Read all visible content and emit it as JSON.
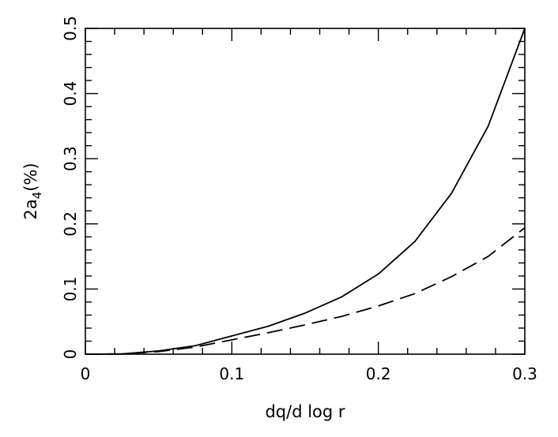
{
  "chart_data": {
    "type": "line",
    "title": "",
    "xlabel": "dq/d log r",
    "ylabel_main": "2a",
    "ylabel_sub": "4",
    "ylabel_tail": "(%)",
    "xlim": [
      0,
      0.3
    ],
    "ylim": [
      0,
      0.5
    ],
    "xticks": [
      0,
      0.1,
      0.2,
      0.3
    ],
    "yticks": [
      0,
      0.1,
      0.2,
      0.3,
      0.4,
      0.5
    ],
    "xtick_labels": [
      "0",
      "0.1",
      "0.2",
      "0.3"
    ],
    "ytick_labels": [
      "0",
      "0.1",
      "0.2",
      "0.3",
      "0.4",
      "0.5"
    ],
    "grid": false,
    "series": [
      {
        "style": "solid",
        "color": "#000000",
        "x": [
          0,
          0.025,
          0.05,
          0.075,
          0.1,
          0.125,
          0.15,
          0.175,
          0.2,
          0.225,
          0.25,
          0.275,
          0.3
        ],
        "y": [
          0,
          0.0004,
          0.005,
          0.013,
          0.028,
          0.043,
          0.063,
          0.088,
          0.123,
          0.173,
          0.247,
          0.35,
          0.5
        ]
      },
      {
        "style": "dashed",
        "color": "#000000",
        "x": [
          0,
          0.025,
          0.05,
          0.075,
          0.1,
          0.125,
          0.15,
          0.175,
          0.2,
          0.225,
          0.25,
          0.275,
          0.3
        ],
        "y": [
          0,
          0.0004,
          0.004,
          0.011,
          0.022,
          0.033,
          0.045,
          0.058,
          0.074,
          0.093,
          0.119,
          0.15,
          0.194
        ]
      }
    ]
  }
}
